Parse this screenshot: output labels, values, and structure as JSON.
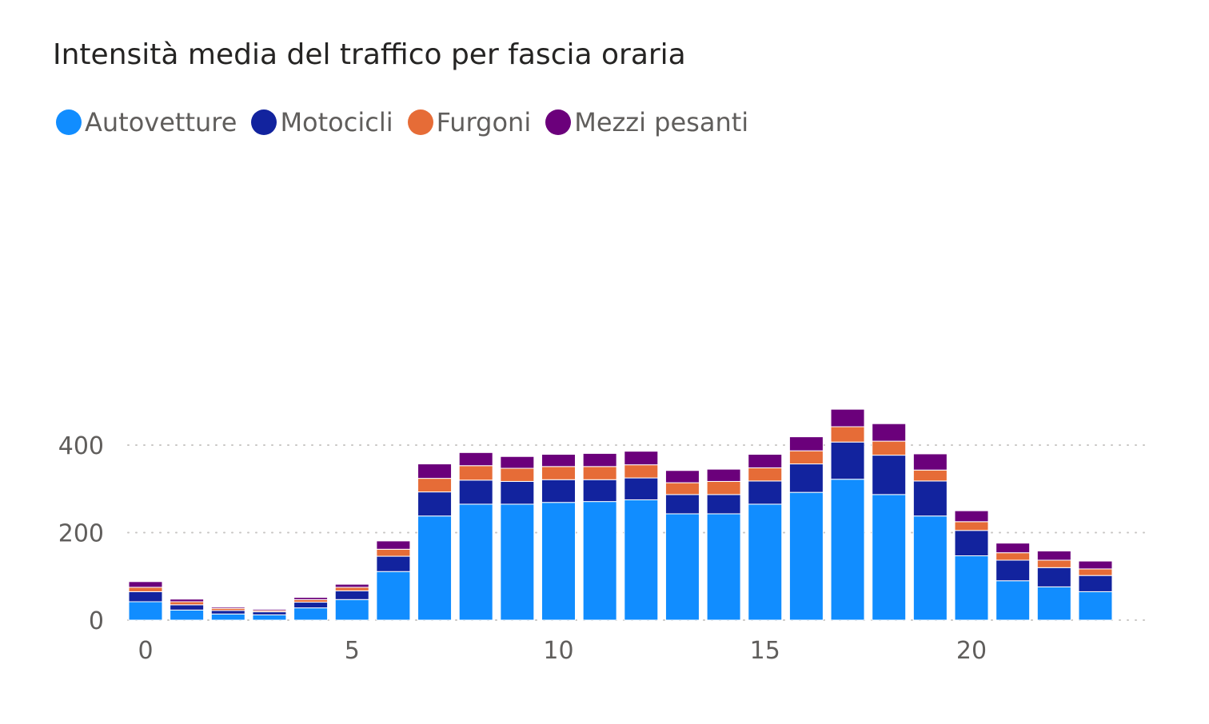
{
  "chart_data": {
    "type": "bar",
    "stacked": true,
    "title": "Intensità media del traffico per fascia oraria",
    "xlabel": "",
    "ylabel": "",
    "x": [
      0,
      1,
      2,
      3,
      4,
      5,
      6,
      7,
      8,
      9,
      10,
      11,
      12,
      13,
      14,
      15,
      16,
      17,
      18,
      19,
      20,
      21,
      22,
      23
    ],
    "x_ticks": [
      0,
      5,
      10,
      15,
      20
    ],
    "y_ticks": [
      0,
      200,
      400
    ],
    "ylim": [
      0,
      490
    ],
    "grid": true,
    "legend_position": "top-left",
    "series": [
      {
        "name": "Autovetture",
        "color": "#118DFF",
        "values": [
          42,
          23,
          14,
          12,
          28,
          47,
          111,
          238,
          265,
          265,
          269,
          271,
          275,
          243,
          243,
          265,
          292,
          322,
          287,
          238,
          147,
          90,
          76,
          65
        ]
      },
      {
        "name": "Motocicli",
        "color": "#12239E",
        "values": [
          23,
          12,
          8,
          7,
          13,
          20,
          35,
          55,
          55,
          52,
          52,
          50,
          50,
          44,
          44,
          53,
          65,
          85,
          90,
          80,
          58,
          47,
          44,
          37
        ]
      },
      {
        "name": "Furgoni",
        "color": "#E66C37",
        "values": [
          10,
          7,
          5,
          3,
          6,
          8,
          16,
          31,
          33,
          30,
          30,
          30,
          30,
          27,
          30,
          30,
          30,
          35,
          32,
          25,
          20,
          17,
          17,
          15
        ]
      },
      {
        "name": "Mezzi pesanti",
        "color": "#6B007B",
        "values": [
          13,
          6,
          3,
          3,
          5,
          7,
          19,
          33,
          30,
          27,
          28,
          30,
          31,
          28,
          28,
          31,
          32,
          40,
          40,
          37,
          25,
          22,
          21,
          18
        ]
      }
    ]
  }
}
